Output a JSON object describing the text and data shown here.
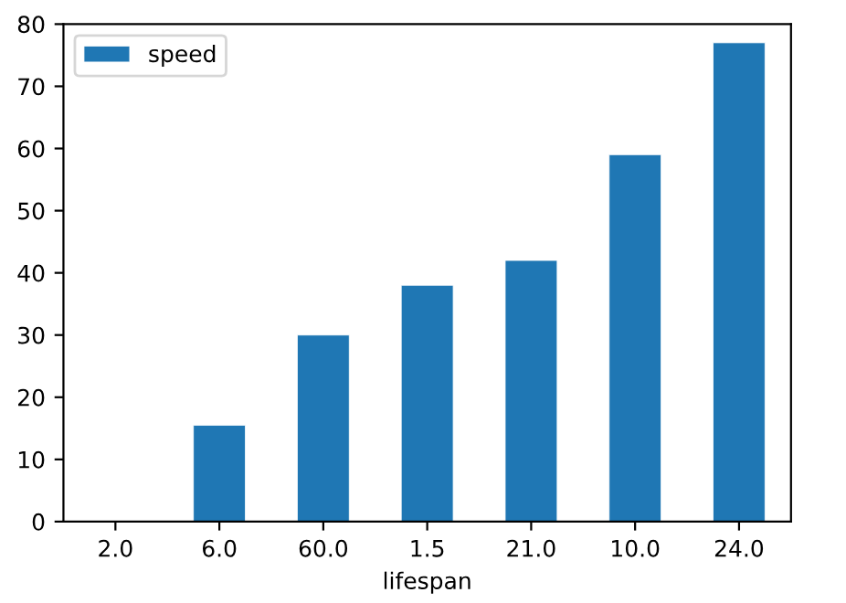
{
  "chart_data": {
    "type": "bar",
    "xlabel": "lifespan",
    "categories": [
      "2.0",
      "6.0",
      "60.0",
      "1.5",
      "21.0",
      "10.0",
      "24.0"
    ],
    "series": [
      {
        "name": "speed",
        "color": "#1f77b4",
        "values": [
          0.1,
          15.5,
          30,
          38,
          42,
          59,
          77
        ]
      }
    ],
    "ylim": [
      0,
      80
    ],
    "yticks": [
      0,
      10,
      20,
      30,
      40,
      50,
      60,
      70,
      80
    ],
    "legend": "top left"
  }
}
